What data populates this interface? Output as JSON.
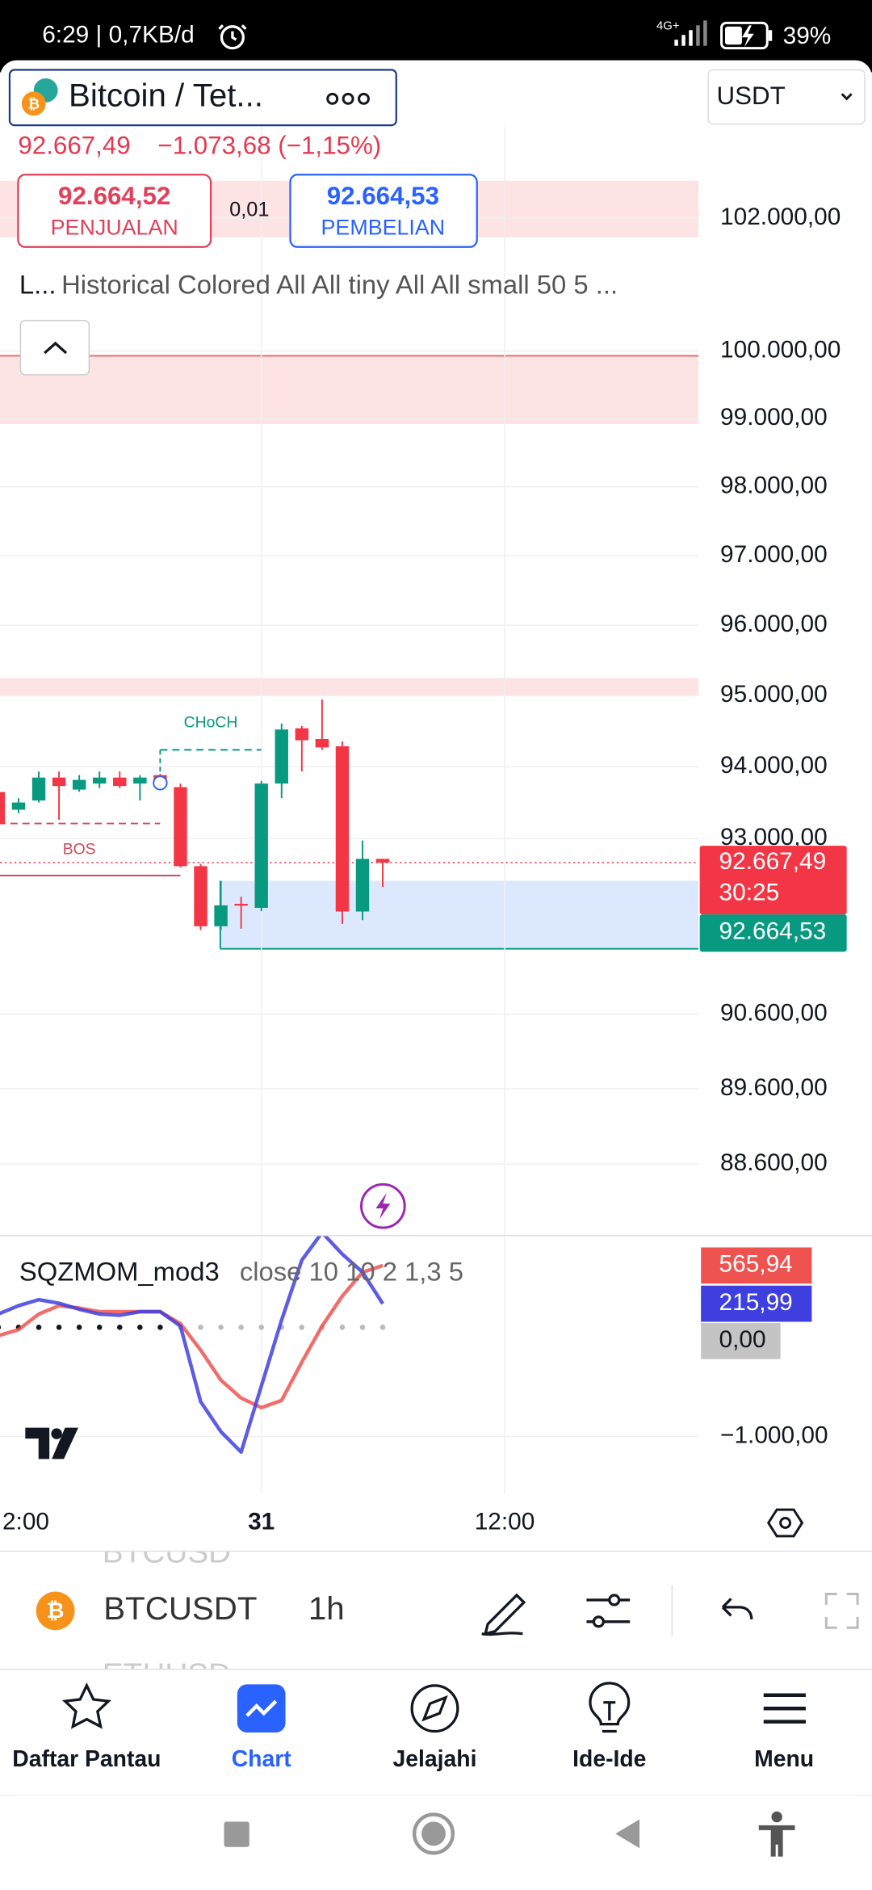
{
  "status_bar": {
    "time": "6:29 | 0,7KB/d",
    "network": "4G+",
    "battery": "39%"
  },
  "header": {
    "symbol_title": "Bitcoin / Tet...",
    "currency": "USDT",
    "price": "92.667,49",
    "change": "−1.073,68 (−1,15%)",
    "sell_price": "92.664,52",
    "sell_label": "PENJUALAN",
    "spread": "0,01",
    "buy_price": "92.664,53",
    "buy_label": "PEMBELIAN",
    "legend_short": "L...",
    "legend": "Historical Colored All All tiny All All small 50 5 ..."
  },
  "chart": {
    "log_scale": true,
    "ylim": [
      87670,
      103400
    ],
    "yticks": [
      {
        "value": 102000,
        "label": "102.000,00"
      },
      {
        "value": 100000,
        "label": "100.000,00"
      },
      {
        "value": 99000,
        "label": "99.000,00"
      },
      {
        "value": 98000,
        "label": "98.000,00"
      },
      {
        "value": 97000,
        "label": "97.000,00"
      },
      {
        "value": 96000,
        "label": "96.000,00"
      },
      {
        "value": 95000,
        "label": "95.000,00"
      },
      {
        "value": 94000,
        "label": "94.000,00"
      },
      {
        "value": 93000,
        "label": "93.000,00"
      },
      {
        "value": 90600,
        "label": "90.600,00"
      },
      {
        "value": 89600,
        "label": "89.600,00"
      },
      {
        "value": 88600,
        "label": "88.600,00"
      }
    ],
    "up_color": "#089981",
    "down_color": "#f23645",
    "candles": [
      {
        "o": 93646,
        "h": 93730,
        "l": 93150,
        "c": 93208
      },
      {
        "o": 93400,
        "h": 93560,
        "l": 93350,
        "c": 93500
      },
      {
        "o": 93528,
        "h": 93933,
        "l": 93500,
        "c": 93848
      },
      {
        "o": 93848,
        "h": 93933,
        "l": 93259,
        "c": 93730
      },
      {
        "o": 93680,
        "h": 93882,
        "l": 93650,
        "c": 93815
      },
      {
        "o": 93764,
        "h": 93933,
        "l": 93700,
        "c": 93848
      },
      {
        "o": 93848,
        "h": 93933,
        "l": 93700,
        "c": 93730
      },
      {
        "o": 93764,
        "h": 93882,
        "l": 93528,
        "c": 93848
      },
      {
        "o": 93882,
        "h": 93900,
        "l": 93740,
        "c": 93764
      },
      {
        "o": 93714,
        "h": 93764,
        "l": 92600,
        "c": 92618
      },
      {
        "o": 92618,
        "h": 92650,
        "l": 91742,
        "c": 91793
      },
      {
        "o": 91793,
        "h": 92416,
        "l": 91742,
        "c": 92079
      },
      {
        "o": 92100,
        "h": 92197,
        "l": 91760,
        "c": 92079
      },
      {
        "o": 92045,
        "h": 93800,
        "l": 92000,
        "c": 93764
      },
      {
        "o": 93764,
        "h": 94607,
        "l": 93562,
        "c": 94522
      },
      {
        "o": 94539,
        "h": 94573,
        "l": 93933,
        "c": 94371
      },
      {
        "o": 94388,
        "h": 94944,
        "l": 94236,
        "c": 94270
      },
      {
        "o": 94286,
        "h": 94354,
        "l": 91826,
        "c": 91995
      },
      {
        "o": 91995,
        "h": 92972,
        "l": 91877,
        "c": 92719
      },
      {
        "o": 92719,
        "h": 92719,
        "l": 92332,
        "c": 92667.49
      }
    ],
    "zones": [
      {
        "top": 102568,
        "bottom": 101708,
        "color": "#fde3e3"
      },
      {
        "top": 99930,
        "bottom": 98920,
        "color": "#fde3e3",
        "edge": "#e57373"
      },
      {
        "top": 95249,
        "bottom": 95000,
        "color": "#fde3e3"
      },
      {
        "top": 92416,
        "bottom": 91486,
        "color": "#dce8fd",
        "edge": "#089981"
      }
    ],
    "structures": [
      {
        "label": "CHoCH",
        "price": 94236,
        "color": "#089981"
      },
      {
        "label": "BOS",
        "price": 93208,
        "color": "#d04a5a"
      }
    ],
    "level": {
      "price": 92489,
      "color": "#d04a5a"
    },
    "last_price": {
      "value": 92667.49,
      "label": "92.667,49"
    },
    "countdown": "30:25",
    "bid": {
      "value": 92664.53,
      "label": "92.664,53"
    },
    "time_labels": [
      "2:00",
      "31",
      "12:00"
    ]
  },
  "indicator": {
    "name": "SQZMOM_mod3",
    "params": "close 10 10 2 1,3 5",
    "ylim": [
      -1527,
      835
    ],
    "yticks": [
      {
        "value": -1000,
        "label": "−1.000,00"
      }
    ],
    "series": [
      {
        "color": "#ef5350",
        "values": [
          -77,
          -22,
          121,
          198,
          176,
          143,
          143,
          143,
          143,
          33,
          -209,
          -484,
          -648,
          -736,
          -670,
          -319,
          11,
          286,
          505,
          565.94
        ],
        "value_label": "565,94"
      },
      {
        "color": "#3f3fe0",
        "values": [
          121,
          198,
          253,
          220,
          165,
          121,
          110,
          143,
          143,
          11,
          -681,
          -956,
          -1143,
          -538,
          66,
          615,
          868,
          670,
          505,
          215.99
        ],
        "value_label": "215,99"
      }
    ],
    "zero": {
      "value": 0,
      "label": "0,00"
    }
  },
  "toolbar": {
    "symbol": "BTCUSDT",
    "interval": "1h",
    "ghost_above": "BTCUSD",
    "ghost_below": "ETHUSD"
  },
  "nav": {
    "items": [
      "Daftar Pantau",
      "Chart",
      "Jelajahi",
      "Ide-Ide",
      "Menu"
    ]
  }
}
